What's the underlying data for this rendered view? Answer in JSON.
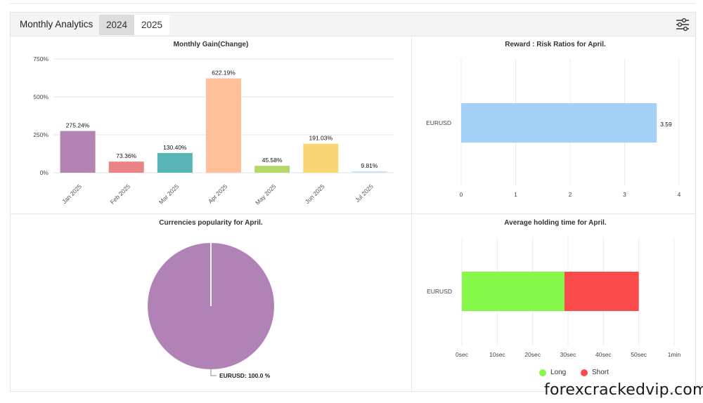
{
  "header": {
    "title": "Monthly Analytics",
    "tabs": [
      {
        "label": "2024"
      },
      {
        "label": "2025"
      }
    ]
  },
  "watermark": "forexcrackedvip.com",
  "colors": {
    "pie": "#b082b6",
    "reward_bar": "#a6d1f7",
    "long": "#86f84a",
    "short": "#fb4b4b"
  },
  "chart_data": [
    {
      "type": "bar",
      "title": "Monthly Gain(Change)",
      "categories": [
        "Jan 2025",
        "Feb 2025",
        "Mar 2025",
        "Apr 2025",
        "May 2025",
        "Jun 2025",
        "Jul 2025"
      ],
      "values": [
        275.24,
        73.36,
        130.4,
        622.19,
        45.58,
        191.03,
        9.81
      ],
      "value_labels": [
        "275.24%",
        "73.36%",
        "130.40%",
        "622.19%",
        "45.58%",
        "191.03%",
        "9.81%"
      ],
      "colors": [
        "#b384b1",
        "#e98384",
        "#5ab5b5",
        "#ffbf98",
        "#b5d76a",
        "#f8d676",
        "#c9e3f7"
      ],
      "ylim": [
        0,
        750
      ],
      "yticks": [
        "0%",
        "250%",
        "500%",
        "750%"
      ],
      "grid": true
    },
    {
      "type": "bar",
      "orientation": "horizontal",
      "title": "Reward : Risk Ratios for April.",
      "categories": [
        "EURUSD"
      ],
      "values": [
        3.59
      ],
      "value_labels": [
        "3.59"
      ],
      "xlim": [
        0,
        4
      ],
      "xticks": [
        "0",
        "1",
        "2",
        "3",
        "4"
      ],
      "grid": true
    },
    {
      "type": "pie",
      "title": "Currencies popularity for April.",
      "slices": [
        {
          "label": "EURUSD: 100.0 %",
          "value": 100.0
        }
      ]
    },
    {
      "type": "bar",
      "orientation": "horizontal",
      "stacked": true,
      "title": "Average holding time for April.",
      "categories": [
        "EURUSD"
      ],
      "series": [
        {
          "name": "Long",
          "values": [
            29
          ]
        },
        {
          "name": "Short",
          "values": [
            21
          ]
        }
      ],
      "xlim": [
        0,
        60
      ],
      "xticks": [
        "0sec",
        "10sec",
        "20sec",
        "30sec",
        "40sec",
        "50sec",
        "1min"
      ],
      "legend": "bottom",
      "grid": true
    }
  ]
}
